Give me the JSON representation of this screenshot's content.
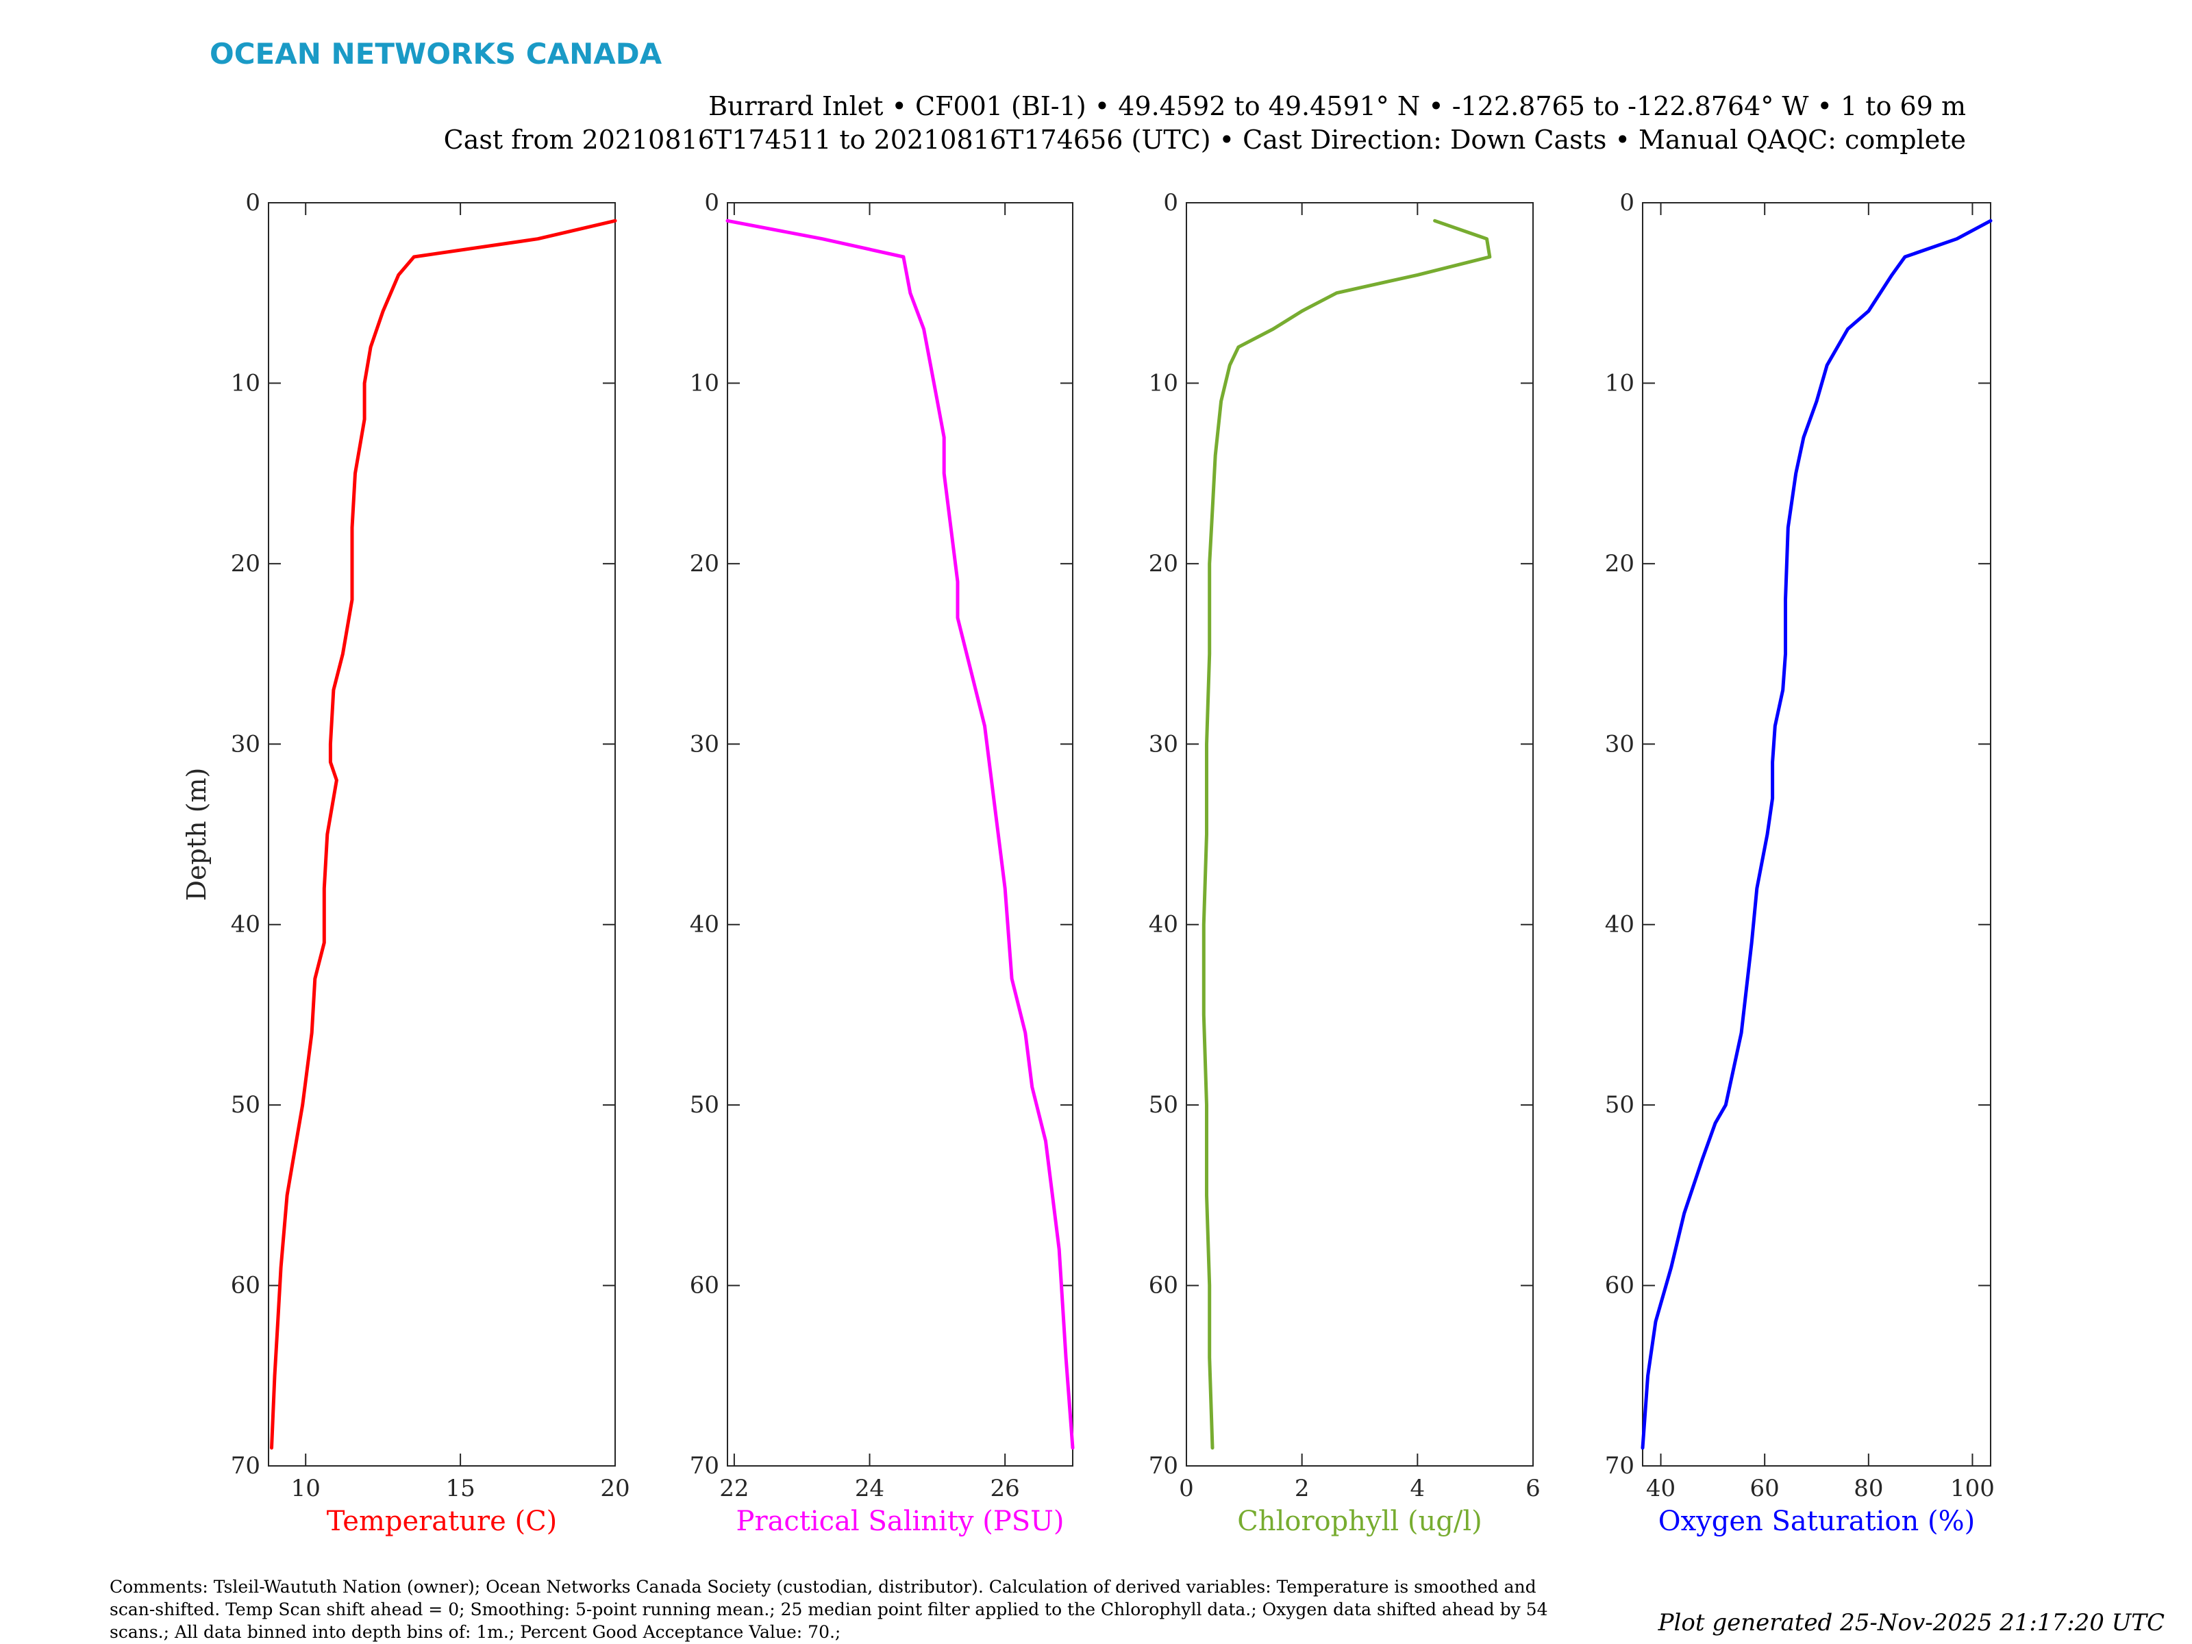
{
  "header": {
    "logo_text": "OCEAN NETWORKS CANADA",
    "line1": "Burrard Inlet • CF001 (BI-1) • 49.4592 to 49.4591° N • -122.8765 to -122.8764° W • 1 to 69 m",
    "line2": "Cast from 20210816T174511 to 20210816T174656 (UTC) • Cast Direction: Down Casts • Manual QAQC: complete"
  },
  "footer": {
    "comments_line1": "Comments: Tsleil-Waututh Nation (owner); Ocean Networks Canada Society (custodian, distributor). Calculation of derived variables: Temperature is smoothed and",
    "comments_line2": "scan-shifted. Temp Scan shift ahead = 0; Smoothing: 5-point running mean.; 25 median point filter applied to the Chlorophyll data.; Oxygen data shifted ahead by 54",
    "comments_line3": "scans.; All data binned into depth bins of: 1m.; Percent Good Acceptance Value: 70.;",
    "generated": "Plot generated 25-Nov-2025 21:17:20 UTC"
  },
  "colors": {
    "logo": "#1a9ac6",
    "temperature": "#ff0000",
    "salinity": "#ff00ff",
    "chlorophyll": "#77ac30",
    "oxygen": "#0000ff"
  },
  "chart_data": [
    {
      "type": "line",
      "xlabel": "Temperature (C)",
      "ylabel": "Depth (m)",
      "xlim": [
        8.8,
        20
      ],
      "ylim": [
        0,
        70
      ],
      "y_reversed": true,
      "xticks": [
        10,
        15,
        20
      ],
      "yticks": [
        0,
        10,
        20,
        30,
        40,
        50,
        60,
        70
      ],
      "color": "temperature",
      "x": [
        20.0,
        17.5,
        13.5,
        13.0,
        12.5,
        12.1,
        11.9,
        11.9,
        11.6,
        11.5,
        11.5,
        11.2,
        10.9,
        10.8,
        10.8,
        11.0,
        10.7,
        10.6,
        10.6,
        10.3,
        10.2,
        9.9,
        9.6,
        9.4,
        9.3,
        9.2,
        9.1,
        9.0,
        8.9
      ],
      "y": [
        1,
        2,
        3,
        4,
        6,
        8,
        10,
        12,
        15,
        18,
        22,
        25,
        27,
        30,
        31,
        32,
        35,
        38,
        41,
        43,
        46,
        50,
        53,
        55,
        57,
        59,
        62,
        65,
        69
      ]
    },
    {
      "type": "line",
      "xlabel": "Practical Salinity (PSU)",
      "xlim": [
        21.9,
        27
      ],
      "ylim": [
        0,
        70
      ],
      "y_reversed": true,
      "xticks": [
        22,
        24,
        26
      ],
      "yticks": [
        0,
        10,
        20,
        30,
        40,
        50,
        60,
        70
      ],
      "color": "salinity",
      "x": [
        21.9,
        23.3,
        24.5,
        24.6,
        24.8,
        24.9,
        25.0,
        25.1,
        25.1,
        25.2,
        25.3,
        25.3,
        25.5,
        25.7,
        25.8,
        25.9,
        26.0,
        26.1,
        26.3,
        26.4,
        26.6,
        26.7,
        26.8,
        26.9,
        27.0
      ],
      "y": [
        1,
        2,
        3,
        5,
        7,
        9,
        11,
        13,
        15,
        18,
        21,
        23,
        26,
        29,
        32,
        35,
        38,
        43,
        46,
        49,
        52,
        55,
        58,
        64,
        69
      ]
    },
    {
      "type": "line",
      "xlabel": "Chlorophyll (ug/l)",
      "xlim": [
        0,
        6
      ],
      "ylim": [
        0,
        70
      ],
      "y_reversed": true,
      "xticks": [
        0,
        2,
        4,
        6
      ],
      "yticks": [
        0,
        10,
        20,
        30,
        40,
        50,
        60,
        70
      ],
      "color": "chlorophyll",
      "x": [
        4.3,
        5.2,
        5.25,
        4.0,
        2.6,
        2.0,
        1.5,
        0.9,
        0.75,
        0.6,
        0.5,
        0.45,
        0.4,
        0.4,
        0.35,
        0.35,
        0.3,
        0.3,
        0.35,
        0.35,
        0.4,
        0.4,
        0.45
      ],
      "y": [
        1,
        2,
        3,
        4,
        5,
        6,
        7,
        8,
        9,
        11,
        14,
        17,
        20,
        25,
        30,
        35,
        40,
        45,
        50,
        55,
        60,
        64,
        69
      ]
    },
    {
      "type": "line",
      "xlabel": "Oxygen Saturation (%)",
      "xlim": [
        36.5,
        103.5
      ],
      "ylim": [
        0,
        70
      ],
      "y_reversed": true,
      "xticks": [
        40,
        60,
        80,
        100
      ],
      "yticks": [
        0,
        10,
        20,
        30,
        40,
        50,
        60,
        70
      ],
      "color": "oxygen",
      "x": [
        103.5,
        97.0,
        87.0,
        84.5,
        80.0,
        76.0,
        72.0,
        70.0,
        67.5,
        66.0,
        64.5,
        64.0,
        64.0,
        63.5,
        62.0,
        61.5,
        61.5,
        60.5,
        58.5,
        57.5,
        55.5,
        52.5,
        50.5,
        48.0,
        44.5,
        42.0,
        39.0,
        37.5,
        36.5
      ],
      "y": [
        1,
        2,
        3,
        4,
        6,
        7,
        9,
        11,
        13,
        15,
        18,
        22,
        25,
        27,
        29,
        31,
        33,
        35,
        38,
        41,
        46,
        50,
        51,
        53,
        56,
        59,
        62,
        65,
        69
      ]
    }
  ]
}
